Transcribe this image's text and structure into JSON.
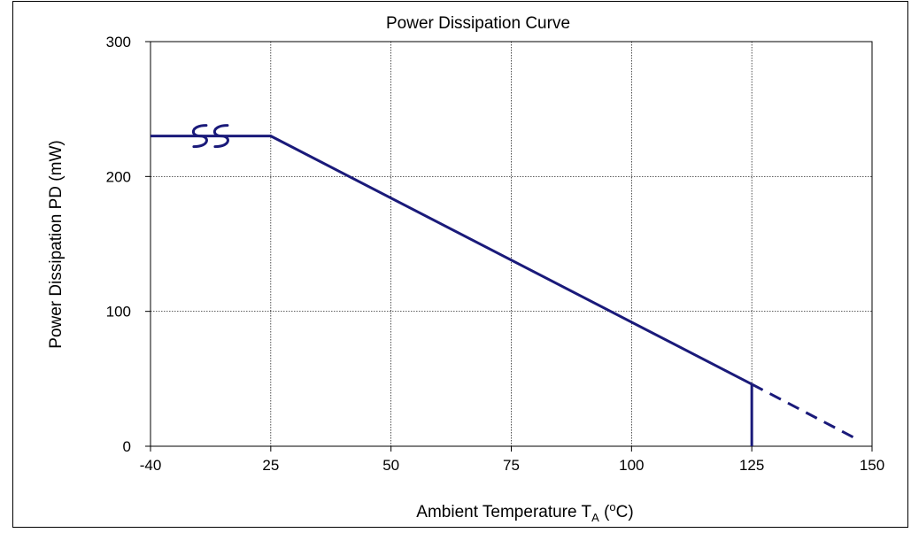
{
  "chart_data": {
    "type": "line",
    "title": "Power Dissipation Curve",
    "xlabel": {
      "main": "Ambient Temperature T",
      "subscript": "A",
      "open_paren": " (",
      "superscript": "o",
      "unit": "C)"
    },
    "ylabel": "Power Dissipation PD (mW)",
    "x_ticks": [
      "-40",
      "25",
      "50",
      "75",
      "100",
      "125",
      "150"
    ],
    "y_ticks": [
      "0",
      "100",
      "200",
      "300"
    ],
    "ylim": [
      0,
      300
    ],
    "grid": true,
    "axis_break": {
      "between": [
        "-40",
        "25"
      ],
      "symbol": "ss"
    },
    "series": [
      {
        "style": "solid",
        "color": "#1a1a7a",
        "points": [
          [
            -40,
            230
          ],
          [
            25,
            230
          ],
          [
            125,
            46
          ]
        ]
      },
      {
        "style": "dashed",
        "color": "#1a1a7a",
        "points": [
          [
            125,
            46
          ],
          [
            147,
            5
          ]
        ]
      },
      {
        "style": "solid",
        "color": "#1a1a7a",
        "points": [
          [
            125,
            46
          ],
          [
            125,
            0
          ]
        ]
      }
    ]
  }
}
